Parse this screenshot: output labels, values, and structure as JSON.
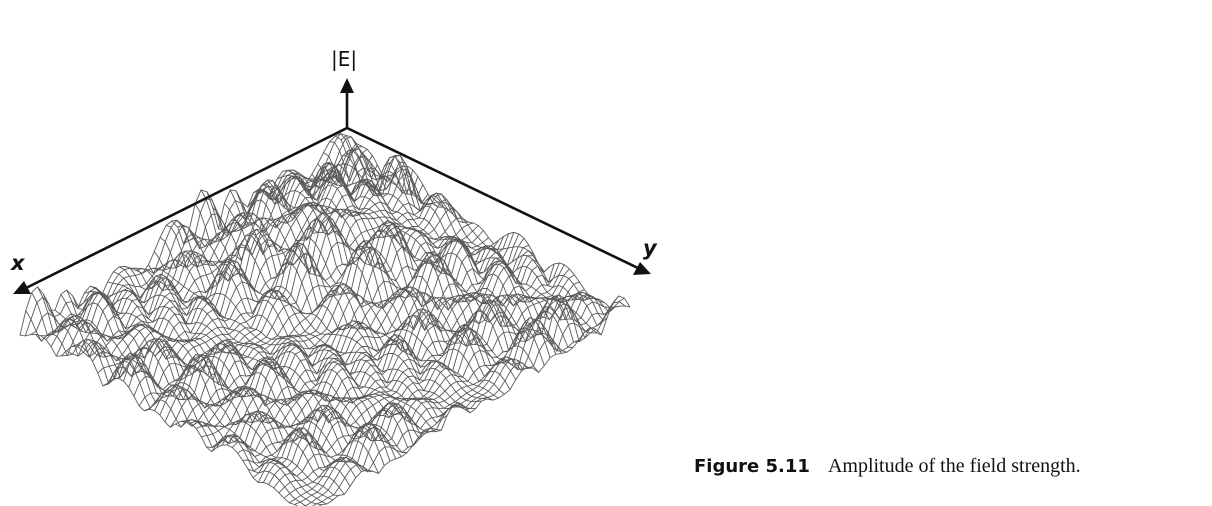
{
  "figure": {
    "axes": {
      "vertical": "|E|",
      "x": "x",
      "y": "y"
    },
    "caption": {
      "number": "Figure 5.11",
      "text": "Amplitude of the field strength."
    },
    "colors": {
      "mesh": "#5a5a5a",
      "axes": "#111111"
    },
    "icons": {
      "axis_arrowheads": "triangle-arrow-icon"
    }
  }
}
